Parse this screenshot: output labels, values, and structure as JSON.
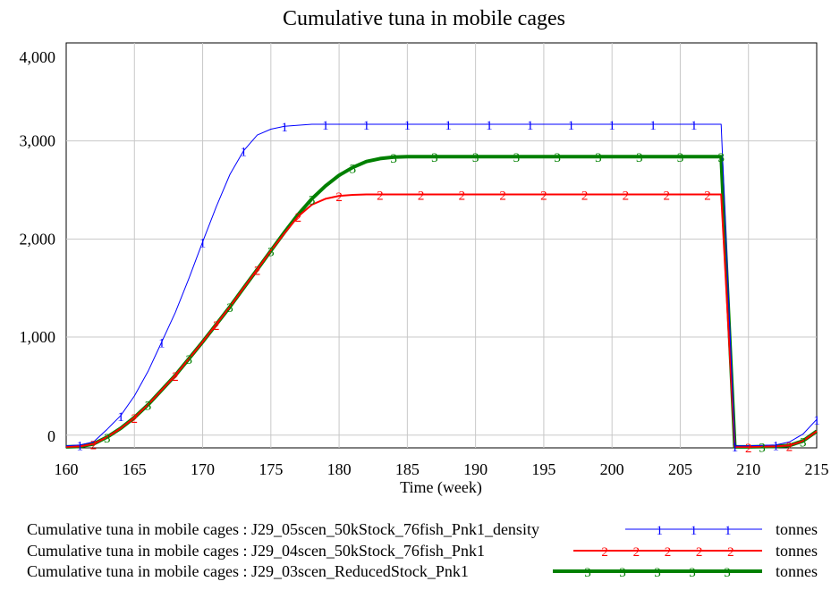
{
  "chart_data": {
    "type": "line",
    "title": "Cumulative tuna in mobile cages",
    "xlabel": "Time (week)",
    "ylabel": "",
    "xlim": [
      160,
      215
    ],
    "ylim": [
      -130,
      4000
    ],
    "x_ticks": [
      160,
      165,
      170,
      175,
      180,
      185,
      190,
      195,
      200,
      205,
      210,
      215
    ],
    "x_tick_labels": [
      "160",
      "165",
      "170",
      "175",
      "180",
      "185",
      "190",
      "195",
      "200",
      "205",
      "210",
      "215"
    ],
    "y_ticks": [
      0,
      1000,
      2000,
      3000,
      4000
    ],
    "y_tick_labels": [
      "0",
      "1,000",
      "2,000",
      "3,000",
      "4,000"
    ],
    "grid": true,
    "legend_position": "bottom",
    "series": [
      {
        "name": "Cumulative tuna in mobile cages : J29_05scen_50kStock_76fish_Pnk1_density",
        "marker": "1",
        "unit": "tonnes",
        "color": "#0000ff",
        "stroke_width": 1,
        "x": [
          160,
          161,
          162,
          163,
          164,
          165,
          166,
          167,
          168,
          169,
          170,
          171,
          172,
          173,
          174,
          175,
          176,
          177,
          178,
          179,
          180,
          185,
          190,
          195,
          200,
          205,
          208,
          209,
          210,
          212,
          213,
          214,
          215
        ],
        "y": [
          -110,
          -100,
          -70,
          60,
          200,
          400,
          650,
          950,
          1250,
          1600,
          1970,
          2330,
          2660,
          2900,
          3060,
          3120,
          3150,
          3160,
          3170,
          3170,
          3170,
          3170,
          3170,
          3170,
          3170,
          3170,
          3170,
          -110,
          -110,
          -100,
          -70,
          10,
          160
        ],
        "marker_x": [
          161,
          164,
          167,
          170,
          173,
          176,
          179,
          182,
          185,
          188,
          191,
          194,
          197,
          200,
          203,
          206,
          209,
          212,
          215
        ]
      },
      {
        "name": "Cumulative tuna in mobile cages : J29_04scen_50kStock_76fish_Pnk1",
        "marker": "2",
        "unit": "tonnes",
        "color": "#ff0000",
        "stroke_width": 2,
        "x": [
          160,
          161,
          162,
          163,
          164,
          165,
          166,
          167,
          168,
          169,
          170,
          171,
          172,
          173,
          174,
          175,
          176,
          177,
          178,
          179,
          180,
          181,
          182,
          185,
          190,
          195,
          200,
          205,
          208,
          209,
          210,
          212,
          213,
          214,
          215
        ],
        "y": [
          -120,
          -115,
          -90,
          -20,
          70,
          180,
          310,
          460,
          610,
          780,
          950,
          1130,
          1310,
          1500,
          1690,
          1880,
          2060,
          2230,
          2350,
          2410,
          2440,
          2450,
          2455,
          2455,
          2455,
          2455,
          2455,
          2455,
          2455,
          -120,
          -120,
          -115,
          -105,
          -60,
          40
        ],
        "marker_x": [
          162,
          165,
          168,
          171,
          174,
          177,
          180,
          183,
          186,
          189,
          192,
          195,
          198,
          201,
          204,
          207,
          210,
          213
        ]
      },
      {
        "name": "Cumulative tuna in mobile cages : J29_03scen_ReducedStock_Pnk1",
        "marker": "3",
        "unit": "tonnes",
        "color": "#008000",
        "stroke_width": 4,
        "x": [
          160,
          161,
          162,
          163,
          164,
          165,
          166,
          167,
          168,
          169,
          170,
          171,
          172,
          173,
          174,
          175,
          176,
          177,
          178,
          179,
          180,
          181,
          182,
          183,
          184,
          185,
          190,
          195,
          200,
          205,
          208,
          209,
          210,
          212,
          213,
          214,
          215
        ],
        "y": [
          -120,
          -115,
          -90,
          -20,
          70,
          180,
          310,
          460,
          610,
          780,
          950,
          1130,
          1310,
          1500,
          1690,
          1880,
          2070,
          2250,
          2410,
          2540,
          2650,
          2730,
          2790,
          2820,
          2835,
          2840,
          2840,
          2840,
          2840,
          2840,
          2840,
          -120,
          -120,
          -115,
          -105,
          -60,
          40
        ],
        "marker_x": [
          163,
          166,
          169,
          172,
          175,
          178,
          181,
          184,
          187,
          190,
          193,
          196,
          199,
          202,
          205,
          208,
          211,
          214
        ]
      }
    ]
  }
}
